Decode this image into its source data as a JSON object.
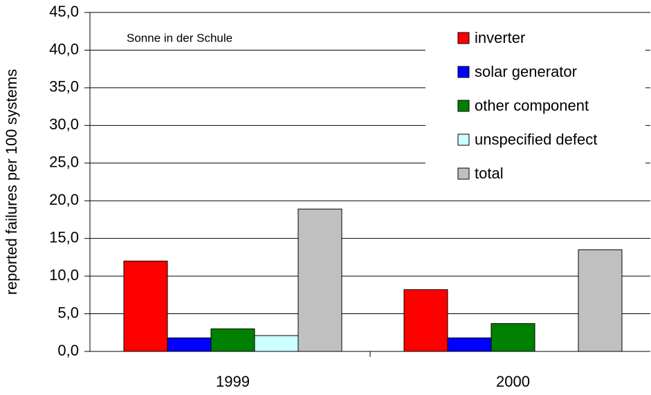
{
  "chart_data": {
    "type": "bar",
    "ylabel": "reported failures per 100 systems",
    "annotation": "Sonne in der Schule",
    "categories": [
      "1999",
      "2000"
    ],
    "series": [
      {
        "name": "inverter",
        "color": "#ff0000",
        "values": [
          12.0,
          8.2
        ]
      },
      {
        "name": "solar generator",
        "color": "#0000ff",
        "values": [
          1.8,
          1.8
        ]
      },
      {
        "name": "other component",
        "color": "#008000",
        "values": [
          3.0,
          3.7
        ]
      },
      {
        "name": "unspecified defect",
        "color": "#ccffff",
        "values": [
          2.1,
          0
        ]
      },
      {
        "name": "total",
        "color": "#c0c0c0",
        "values": [
          18.9,
          13.5
        ]
      }
    ],
    "ylim": [
      0,
      45
    ],
    "yticks": [
      {
        "value": 0,
        "label": "0,0"
      },
      {
        "value": 5,
        "label": "5,0"
      },
      {
        "value": 10,
        "label": "10,0"
      },
      {
        "value": 15,
        "label": "15,0"
      },
      {
        "value": 20,
        "label": "20,0"
      },
      {
        "value": 25,
        "label": "25,0"
      },
      {
        "value": 30,
        "label": "30,0"
      },
      {
        "value": 35,
        "label": "35,0"
      },
      {
        "value": 40,
        "label": "40,0"
      },
      {
        "value": 45,
        "label": "45,0"
      }
    ],
    "grid": true,
    "legend": "upper right"
  }
}
